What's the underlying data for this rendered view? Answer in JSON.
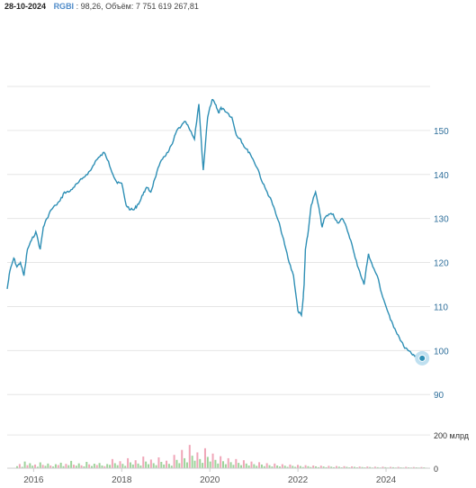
{
  "header": {
    "date": "28-10-2024",
    "ticker": "RGBI",
    "value_text": "98,26,",
    "volume_label": "Объём:",
    "volume_value": "7 751 619 267,81"
  },
  "colors": {
    "line": "#2e8fb5",
    "grid": "#e6e6e6",
    "volume_up": "#9ed39b",
    "volume_down": "#f0a6b8",
    "marker": "#2e8fb5",
    "marker_halo": "#bfe0f0"
  },
  "chart_data": [
    {
      "type": "line",
      "title": "",
      "xlabel": "",
      "ylabel": "",
      "grid": true,
      "legend": "none",
      "ylim": [
        88,
        160
      ],
      "xlim": [
        2015.4,
        2025.0
      ],
      "yticks": [
        90,
        100,
        110,
        120,
        130,
        140,
        150
      ],
      "ytick_labels": [
        "90",
        "100",
        "110",
        "120",
        "130",
        "140",
        "150"
      ],
      "xticks": [
        2016,
        2018,
        2020,
        2022,
        2024
      ],
      "xtick_labels": [
        "2016",
        "2018",
        "2020",
        "2022",
        "2024"
      ],
      "series": [
        {
          "x": [
            2015.4,
            2015.46,
            2015.55,
            2015.62,
            2015.7,
            2015.78,
            2015.86,
            2015.95,
            2016.05,
            2016.15,
            2016.22,
            2016.3,
            2016.4,
            2016.5,
            2016.6,
            2016.7,
            2016.8,
            2016.9,
            2017.0,
            2017.1,
            2017.2,
            2017.3,
            2017.4,
            2017.5,
            2017.6,
            2017.7,
            2017.8,
            2017.9,
            2018.0,
            2018.1,
            2018.2,
            2018.28,
            2018.35,
            2018.42,
            2018.5,
            2018.58,
            2018.66,
            2018.75,
            2018.85,
            2018.95,
            2019.05,
            2019.15,
            2019.25,
            2019.35,
            2019.45,
            2019.55,
            2019.65,
            2019.75,
            2019.85,
            2019.95,
            2020.05,
            2020.12,
            2020.16,
            2020.2,
            2020.24,
            2020.3,
            2020.4,
            2020.5,
            2020.6,
            2020.7,
            2020.8,
            2020.9,
            2021.0,
            2021.1,
            2021.2,
            2021.3,
            2021.4,
            2021.5,
            2021.6,
            2021.7,
            2021.8,
            2021.9,
            2022.0,
            2022.08,
            2022.12,
            2022.14,
            2022.17,
            2022.22,
            2022.3,
            2022.4,
            2022.5,
            2022.55,
            2022.6,
            2022.7,
            2022.8,
            2022.9,
            2023.0,
            2023.1,
            2023.2,
            2023.3,
            2023.4,
            2023.5,
            2023.6,
            2023.7,
            2023.8,
            2023.9,
            2024.0,
            2024.1,
            2024.2,
            2024.3,
            2024.4,
            2024.5,
            2024.6,
            2024.7,
            2024.78,
            2024.82
          ],
          "values": [
            114,
            118,
            121,
            119,
            120,
            117,
            123,
            125,
            127,
            123,
            128,
            130,
            132,
            133,
            134,
            136,
            136,
            137,
            138,
            139,
            140,
            141,
            143,
            144,
            145,
            143,
            140,
            138,
            138,
            133,
            132,
            132,
            133,
            134,
            136,
            137,
            136,
            139,
            142,
            144,
            145,
            147,
            150,
            151,
            152,
            150,
            148,
            156,
            141,
            153,
            157,
            156,
            155,
            154,
            155,
            155,
            154,
            153,
            149,
            148,
            146,
            145,
            143,
            141,
            138,
            136,
            134,
            131,
            128,
            124,
            120,
            117,
            109,
            108,
            112,
            115,
            123,
            126,
            133,
            136,
            131,
            128,
            130,
            131,
            131,
            129,
            130,
            128,
            125,
            121,
            118,
            115,
            122,
            119,
            117,
            113,
            110,
            107,
            105,
            103,
            101,
            100,
            99,
            99,
            98.5,
            98.26
          ]
        }
      ]
    },
    {
      "type": "bar",
      "title": "",
      "xlabel": "",
      "ylabel": "",
      "yticks": [
        0,
        200
      ],
      "ytick_labels": [
        "0",
        "200 млрд"
      ],
      "ylim": [
        0,
        260
      ],
      "series": [
        {
          "name": "",
          "values": [
            12,
            25,
            8,
            40,
            18,
            30,
            15,
            22,
            9,
            35,
            20,
            14,
            28,
            16,
            10,
            24,
            19,
            33,
            12,
            26,
            18,
            44,
            21,
            15,
            29,
            17,
            11,
            38,
            23,
            13,
            27,
            19,
            31,
            16,
            12,
            25,
            20,
            55,
            30,
            18,
            42,
            26,
            14,
            60,
            35,
            22,
            48,
            28,
            16,
            70,
            40,
            24,
            52,
            30,
            18,
            65,
            38,
            22,
            45,
            26,
            15,
            80,
            50,
            30,
            110,
            60,
            35,
            140,
            75,
            45,
            95,
            55,
            32,
            120,
            68,
            40,
            88,
            50,
            28,
            72,
            42,
            24,
            60,
            36,
            20,
            55,
            32,
            18,
            48,
            28,
            16,
            40,
            24,
            14,
            36,
            22,
            12,
            30,
            18,
            10,
            28,
            16,
            10,
            24,
            15,
            8,
            22,
            14,
            8,
            20,
            13,
            7,
            18,
            12,
            7,
            16,
            11,
            6,
            15,
            10,
            6,
            14,
            9,
            6,
            13,
            9,
            5,
            12,
            8,
            5,
            11,
            8,
            5,
            10,
            7,
            5,
            10,
            7,
            4,
            9,
            6,
            4,
            9,
            6,
            4,
            8,
            6,
            4,
            8,
            5,
            4,
            8,
            5,
            4,
            7,
            5,
            4,
            7,
            5,
            3
          ]
        }
      ]
    }
  ]
}
